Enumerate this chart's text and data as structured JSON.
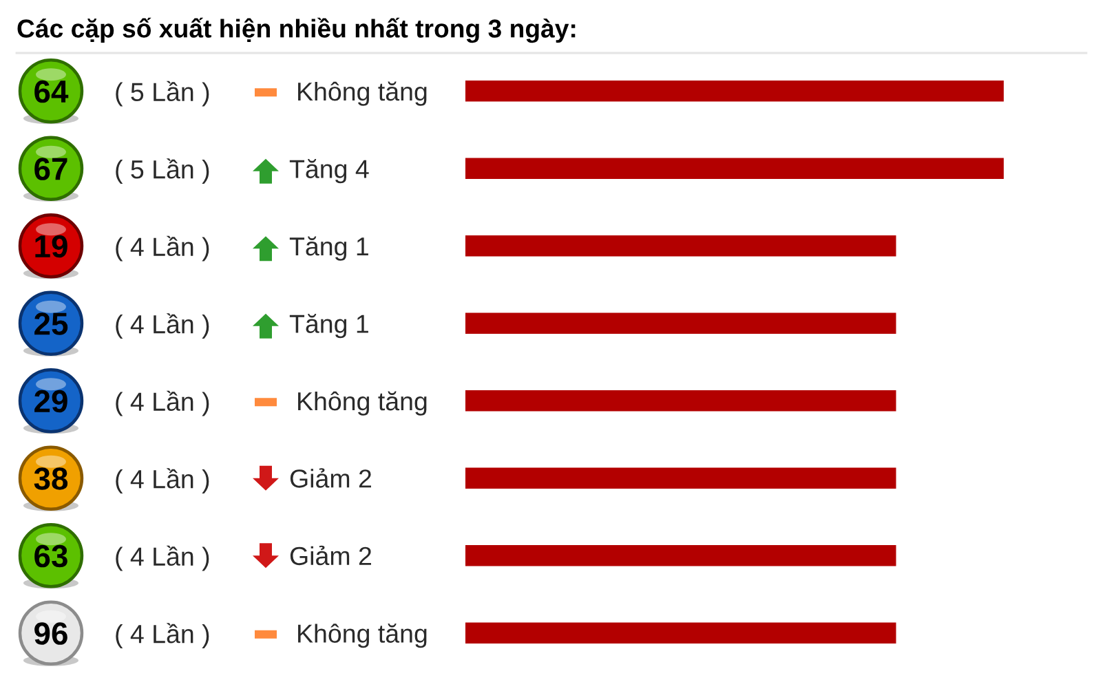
{
  "chart_data": {
    "type": "bar",
    "orientation": "horizontal",
    "title": "Các cặp số xuất hiện nhiều nhất trong 3 ngày:",
    "categories": [
      "64",
      "67",
      "19",
      "25",
      "29",
      "38",
      "63",
      "96"
    ],
    "values": [
      5,
      5,
      4,
      4,
      4,
      4,
      4,
      4
    ],
    "color": "#b30000",
    "value_labels": [
      "( 5 Lần )",
      "( 5 Lần )",
      "( 4 Lần )",
      "( 4 Lần )",
      "( 4 Lần )",
      "( 4 Lần )",
      "( 4 Lần )",
      "( 4 Lần )"
    ],
    "annotations": [
      "Không tăng",
      "Tăng 4",
      "Tăng 1",
      "Tăng 1",
      "Không tăng",
      "Giảm 2",
      "Giảm 2",
      "Không tăng"
    ],
    "tick_labels": "y"
  }
}
